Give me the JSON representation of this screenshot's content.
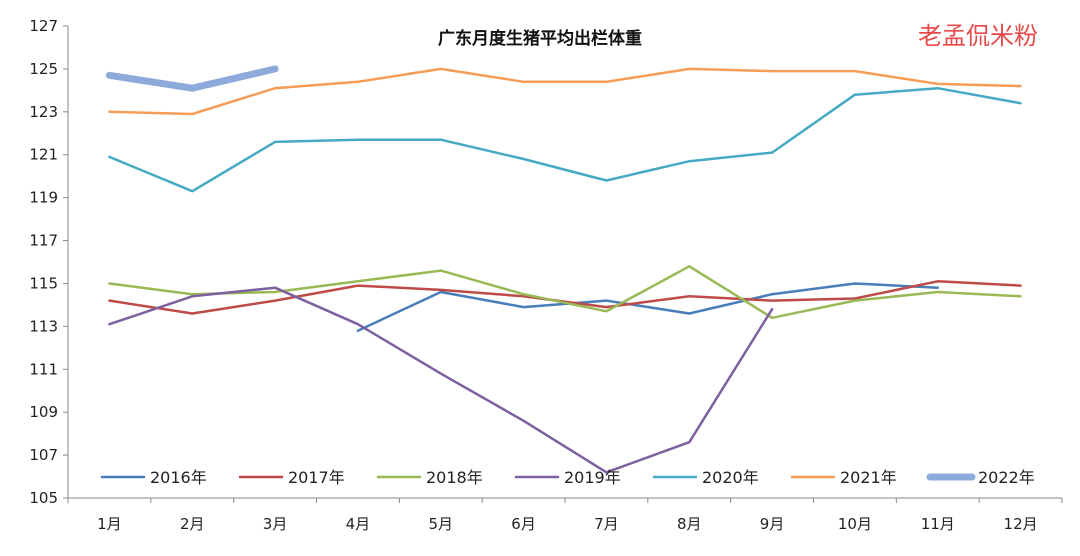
{
  "chart_data": {
    "type": "line",
    "title": "广东月度生猪平均出栏体重",
    "watermark": "老孟侃米粉",
    "xlabel": "",
    "ylabel": "",
    "categories": [
      "1月",
      "2月",
      "3月",
      "4月",
      "5月",
      "6月",
      "7月",
      "8月",
      "9月",
      "10月",
      "11月",
      "12月"
    ],
    "ylim": [
      105,
      127
    ],
    "yticks": [
      105,
      107,
      109,
      111,
      113,
      115,
      117,
      119,
      121,
      123,
      125,
      127
    ],
    "grid": false,
    "legend_position": "bottom",
    "series": [
      {
        "name": "2016年",
        "color": "#4a7ebb",
        "values": [
          null,
          null,
          null,
          112.8,
          114.6,
          113.9,
          114.2,
          113.6,
          114.5,
          115.0,
          114.8,
          null
        ]
      },
      {
        "name": "2017年",
        "color": "#be4b48",
        "values": [
          114.2,
          113.6,
          114.2,
          114.9,
          114.7,
          114.4,
          113.9,
          114.4,
          114.2,
          114.3,
          115.1,
          114.9
        ]
      },
      {
        "name": "2018年",
        "color": "#98b954",
        "values": [
          115.0,
          114.5,
          114.6,
          115.1,
          115.6,
          114.5,
          113.7,
          115.8,
          113.4,
          114.2,
          114.6,
          114.4
        ]
      },
      {
        "name": "2019年",
        "color": "#7d60a0",
        "values": [
          113.1,
          114.4,
          114.8,
          113.1,
          110.8,
          108.6,
          106.2,
          107.6,
          113.8,
          null,
          null,
          null
        ]
      },
      {
        "name": "2020年",
        "color": "#46aac4",
        "values": [
          120.9,
          119.3,
          121.6,
          121.7,
          121.7,
          120.8,
          119.8,
          120.7,
          121.1,
          123.8,
          124.1,
          123.4
        ]
      },
      {
        "name": "2021年",
        "color": "#f59d56",
        "values": [
          123.0,
          122.9,
          124.1,
          124.4,
          125.0,
          124.4,
          124.4,
          125.0,
          124.9,
          124.9,
          124.3,
          124.2
        ]
      },
      {
        "name": "2022年",
        "color": "#8eaadb",
        "values": [
          124.7,
          124.1,
          125.0,
          null,
          null,
          null,
          null,
          null,
          null,
          null,
          null,
          null
        ],
        "bold": true
      }
    ]
  }
}
